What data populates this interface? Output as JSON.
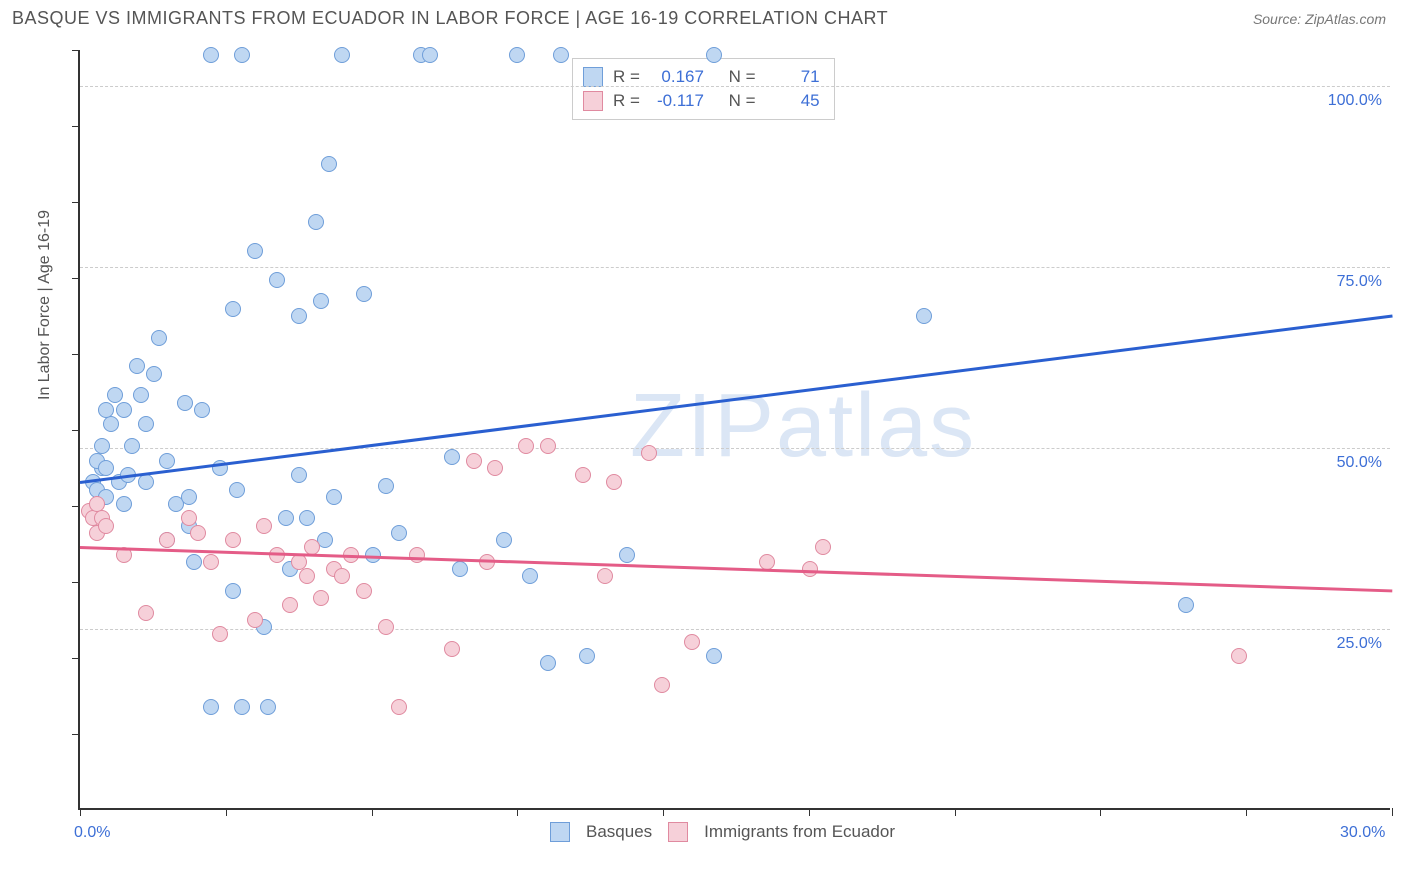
{
  "header": {
    "title": "BASQUE VS IMMIGRANTS FROM ECUADOR IN LABOR FORCE | AGE 16-19 CORRELATION CHART",
    "source": "Source: ZipAtlas.com"
  },
  "watermark": "ZIPatlas",
  "chart": {
    "type": "scatter",
    "y_axis_label": "In Labor Force | Age 16-19",
    "xlim": [
      0,
      30
    ],
    "ylim": [
      0,
      105
    ],
    "x_ticks": [
      0,
      3.33,
      6.67,
      10,
      13.33,
      16.67,
      20,
      23.33,
      26.67,
      30
    ],
    "x_tick_labels_shown": {
      "0": "0.0%",
      "30": "30.0%"
    },
    "y_ticks": [
      25,
      50,
      75,
      100
    ],
    "y_tick_labels": {
      "25": "25.0%",
      "50": "50.0%",
      "75": "75.0%",
      "100": "100.0%"
    },
    "grid_color": "#cccccc",
    "background_color": "#ffffff",
    "axis_color": "#333333",
    "tick_label_color": "#3d6fd6",
    "point_radius": 8,
    "series": [
      {
        "name": "Basques",
        "fill": "#bfd7f2",
        "stroke": "#6f9ed9",
        "trend": {
          "x1": 0,
          "y1": 45.5,
          "x2": 30,
          "y2": 68.5,
          "color": "#2a5fd0",
          "width": 3
        },
        "stats": {
          "R": "0.167",
          "N": "71"
        },
        "points": [
          [
            0.3,
            45
          ],
          [
            0.4,
            44
          ],
          [
            0.5,
            47
          ],
          [
            0.6,
            43
          ],
          [
            0.4,
            48
          ],
          [
            0.7,
            53
          ],
          [
            0.5,
            50
          ],
          [
            0.6,
            47
          ],
          [
            0.6,
            55
          ],
          [
            0.9,
            45
          ],
          [
            0.8,
            57
          ],
          [
            1.0,
            42
          ],
          [
            1.1,
            46
          ],
          [
            1.2,
            50
          ],
          [
            1.0,
            55
          ],
          [
            1.3,
            61
          ],
          [
            1.5,
            53
          ],
          [
            1.5,
            45
          ],
          [
            1.4,
            57
          ],
          [
            1.8,
            65
          ],
          [
            2.0,
            48
          ],
          [
            1.7,
            60
          ],
          [
            2.2,
            42
          ],
          [
            2.4,
            56
          ],
          [
            2.5,
            43
          ],
          [
            2.5,
            39
          ],
          [
            2.6,
            34
          ],
          [
            2.8,
            55
          ],
          [
            3.0,
            104
          ],
          [
            3.0,
            14
          ],
          [
            3.5,
            69
          ],
          [
            3.7,
            104
          ],
          [
            3.2,
            47
          ],
          [
            3.5,
            30
          ],
          [
            3.6,
            44
          ],
          [
            3.7,
            14
          ],
          [
            4.0,
            77
          ],
          [
            4.3,
            14
          ],
          [
            4.5,
            73
          ],
          [
            4.7,
            40
          ],
          [
            4.8,
            33
          ],
          [
            5.0,
            46
          ],
          [
            5.0,
            68
          ],
          [
            5.2,
            40
          ],
          [
            5.4,
            81
          ],
          [
            5.5,
            70
          ],
          [
            5.6,
            37
          ],
          [
            5.7,
            89
          ],
          [
            5.8,
            43
          ],
          [
            6.0,
            104
          ],
          [
            6.5,
            71
          ],
          [
            6.7,
            35
          ],
          [
            7.0,
            44.5
          ],
          [
            7.3,
            38
          ],
          [
            7.8,
            104
          ],
          [
            8.0,
            104
          ],
          [
            8.5,
            48.5
          ],
          [
            8.7,
            33
          ],
          [
            9.7,
            37
          ],
          [
            10.0,
            104
          ],
          [
            10.3,
            32
          ],
          [
            10.7,
            20
          ],
          [
            11.0,
            104
          ],
          [
            11.6,
            21
          ],
          [
            12.5,
            35
          ],
          [
            14.5,
            104
          ],
          [
            14.5,
            21
          ],
          [
            19.3,
            68
          ],
          [
            25.3,
            28
          ],
          [
            4.2,
            25
          ],
          [
            2.0,
            37
          ]
        ]
      },
      {
        "name": "Immigrants from Ecuador",
        "fill": "#f6d0d9",
        "stroke": "#e08aa0",
        "trend": {
          "x1": 0,
          "y1": 36.5,
          "x2": 30,
          "y2": 30.5,
          "color": "#e45c87",
          "width": 3
        },
        "stats": {
          "R": "-0.117",
          "N": "45"
        },
        "points": [
          [
            0.2,
            41
          ],
          [
            0.3,
            40
          ],
          [
            0.4,
            42
          ],
          [
            0.5,
            40
          ],
          [
            0.4,
            38
          ],
          [
            0.6,
            39
          ],
          [
            1.0,
            35
          ],
          [
            1.5,
            27
          ],
          [
            2.0,
            37
          ],
          [
            2.5,
            40
          ],
          [
            2.7,
            38
          ],
          [
            3.0,
            34
          ],
          [
            3.2,
            24
          ],
          [
            3.5,
            37
          ],
          [
            4.0,
            26
          ],
          [
            4.2,
            39
          ],
          [
            4.5,
            35
          ],
          [
            5.0,
            34
          ],
          [
            5.2,
            32
          ],
          [
            5.3,
            36
          ],
          [
            5.5,
            29
          ],
          [
            5.8,
            33
          ],
          [
            6.0,
            32
          ],
          [
            6.2,
            35
          ],
          [
            6.5,
            30
          ],
          [
            7.0,
            25
          ],
          [
            7.3,
            14
          ],
          [
            7.7,
            35
          ],
          [
            8.5,
            22
          ],
          [
            9.0,
            48
          ],
          [
            9.3,
            34
          ],
          [
            9.5,
            47
          ],
          [
            10.2,
            50
          ],
          [
            10.7,
            50
          ],
          [
            11.5,
            46
          ],
          [
            12.0,
            32
          ],
          [
            12.2,
            45
          ],
          [
            13.0,
            49
          ],
          [
            13.3,
            17
          ],
          [
            14.0,
            23
          ],
          [
            15.7,
            34
          ],
          [
            17.0,
            36
          ],
          [
            16.7,
            33
          ],
          [
            26.5,
            21
          ],
          [
            4.8,
            28
          ]
        ]
      }
    ],
    "stats_legend": {
      "labels": {
        "R": "R =",
        "N": "N ="
      }
    },
    "bottom_legend": {
      "labels": [
        "Basques",
        "Immigrants from Ecuador"
      ]
    }
  }
}
